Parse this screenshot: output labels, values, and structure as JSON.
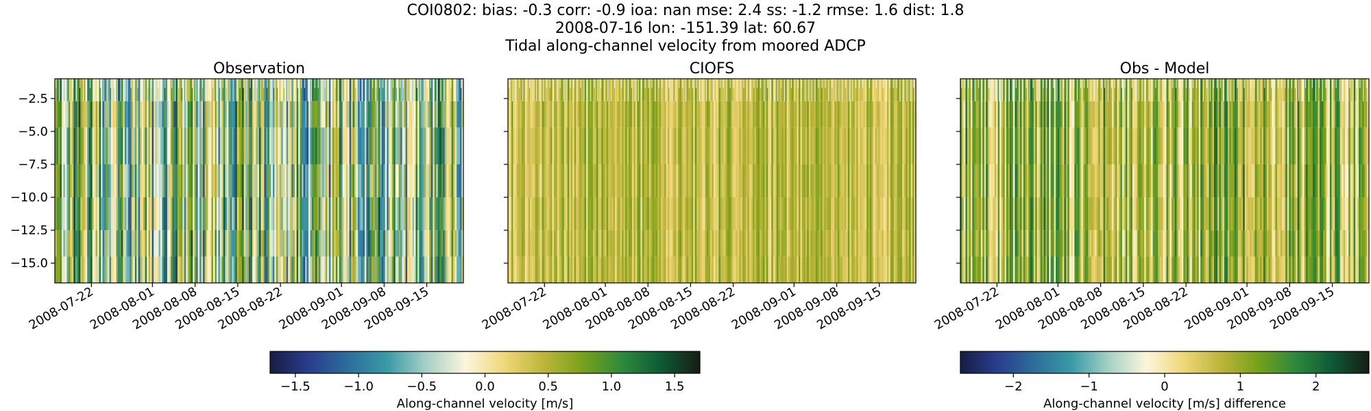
{
  "header": {
    "line1": "COI0802: bias: -0.3  corr: -0.9  ioa: nan  mse: 2.4  ss: -1.2  rmse: 1.6  dist: 1.8",
    "line2": "2008-07-16 lon: -151.39 lat: 60.67",
    "line3": "Tidal along-channel velocity from moored ADCP"
  },
  "colors": {
    "cmap": [
      "#161d44",
      "#2a3d8e",
      "#2d6e9b",
      "#3a9aa6",
      "#a7d0c6",
      "#fbf6dc",
      "#f0d77a",
      "#bdb53b",
      "#78a11a",
      "#2e8a3c",
      "#0e5a36",
      "#151d12"
    ]
  },
  "chart_data": [
    {
      "type": "heatmap",
      "title": "Observation",
      "xlabel": "",
      "ylabel": "",
      "x_ticks": [
        "2008-07-22",
        "2008-08-01",
        "2008-08-08",
        "2008-08-15",
        "2008-08-22",
        "2008-09-01",
        "2008-09-08",
        "2008-09-15"
      ],
      "y_ticks": [
        -2.5,
        -5.0,
        -7.5,
        -10.0,
        -12.5,
        -15.0
      ],
      "y_tick_labels": [
        "−2.5",
        "−5.0",
        "−7.5",
        "−10.0",
        "−12.5",
        "−15.0"
      ],
      "xlim": [
        "2008-07-16",
        "2008-09-21"
      ],
      "ylim": [
        -16.5,
        -1.0
      ],
      "value_range": [
        -1.7,
        1.7
      ],
      "mean_value": 0.1,
      "spread": 1.2,
      "colorbar": "velocity"
    },
    {
      "type": "heatmap",
      "title": "CIOFS",
      "xlabel": "",
      "ylabel": "",
      "x_ticks": [
        "2008-07-22",
        "2008-08-01",
        "2008-08-08",
        "2008-08-15",
        "2008-08-22",
        "2008-09-01",
        "2008-09-08",
        "2008-09-15"
      ],
      "y_ticks": [
        -2.5,
        -5.0,
        -7.5,
        -10.0,
        -12.5,
        -15.0
      ],
      "xlim": [
        "2008-07-16",
        "2008-09-21"
      ],
      "ylim": [
        -16.5,
        -1.0
      ],
      "value_range": [
        -1.7,
        1.7
      ],
      "mean_value": 0.45,
      "spread": 0.35,
      "colorbar": "velocity"
    },
    {
      "type": "heatmap",
      "title": "Obs - Model",
      "xlabel": "",
      "ylabel": "",
      "x_ticks": [
        "2008-07-22",
        "2008-08-01",
        "2008-08-08",
        "2008-08-15",
        "2008-08-22",
        "2008-09-01",
        "2008-09-08",
        "2008-09-15"
      ],
      "y_ticks": [
        -2.5,
        -5.0,
        -7.5,
        -10.0,
        -12.5,
        -15.0
      ],
      "xlim": [
        "2008-07-16",
        "2008-09-21"
      ],
      "ylim": [
        -16.5,
        -1.0
      ],
      "value_range": [
        -2.7,
        2.7
      ],
      "mean_value": 0.9,
      "spread": 1.0,
      "colorbar": "difference"
    }
  ],
  "colorbars": {
    "velocity": {
      "label": "Along-channel velocity [m/s]",
      "range": [
        -1.7,
        1.7
      ],
      "ticks": [
        -1.5,
        -1.0,
        -0.5,
        0.0,
        0.5,
        1.0,
        1.5
      ],
      "tick_labels": [
        "−1.5",
        "−1.0",
        "−0.5",
        "0.0",
        "0.5",
        "1.0",
        "1.5"
      ]
    },
    "difference": {
      "label": "Along-channel velocity [m/s] difference",
      "range": [
        -2.7,
        2.7
      ],
      "ticks": [
        -2,
        -1,
        0,
        1,
        2
      ],
      "tick_labels": [
        "−2",
        "−1",
        "0",
        "1",
        "2"
      ]
    }
  }
}
